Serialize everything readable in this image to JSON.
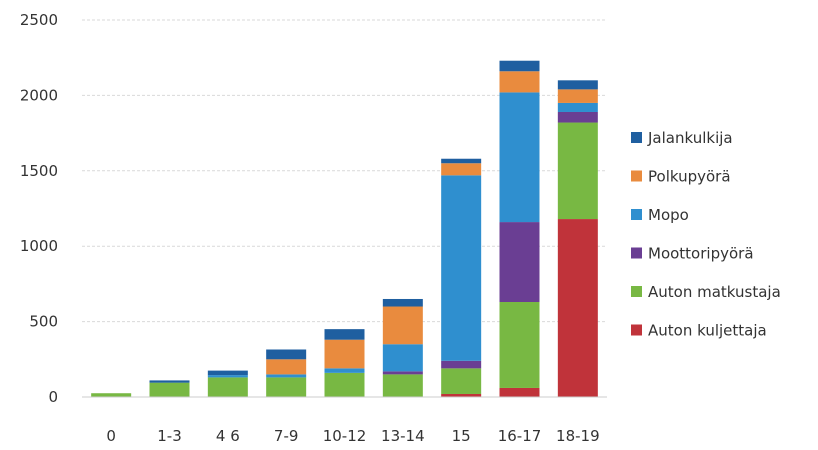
{
  "chart_data": {
    "type": "bar",
    "stacked": true,
    "categories": [
      "0",
      "1-3",
      "4 6",
      "7-9",
      "10-12",
      "13-14",
      "15",
      "16-17",
      "18-19"
    ],
    "yticks": [
      "0",
      "500",
      "1000",
      "1500",
      "2000",
      "2500"
    ],
    "ylim": [
      0,
      2500
    ],
    "grid": true,
    "legend_position": "right",
    "series": [
      {
        "name": "Auton kuljettaja",
        "color": "#c0333a",
        "values": [
          0,
          0,
          0,
          0,
          0,
          0,
          20,
          60,
          1180
        ]
      },
      {
        "name": "Auton matkustaja",
        "color": "#78b843",
        "values": [
          25,
          95,
          130,
          130,
          160,
          150,
          170,
          570,
          640
        ]
      },
      {
        "name": "Moottoripyörä",
        "color": "#6a3e93",
        "values": [
          0,
          0,
          0,
          0,
          0,
          20,
          50,
          530,
          70
        ]
      },
      {
        "name": "Mopo",
        "color": "#2f8fcf",
        "values": [
          0,
          0,
          15,
          20,
          30,
          180,
          1230,
          860,
          60
        ]
      },
      {
        "name": "Polkupyörä",
        "color": "#e98b3e",
        "values": [
          0,
          0,
          0,
          100,
          190,
          250,
          80,
          140,
          90
        ]
      },
      {
        "name": "Jalankulkija",
        "color": "#1f5fa0",
        "values": [
          0,
          15,
          30,
          65,
          70,
          50,
          30,
          70,
          60
        ]
      }
    ],
    "legend_order": [
      "Jalankulkija",
      "Polkupyörä",
      "Mopo",
      "Moottoripyörä",
      "Auton matkustaja",
      "Auton kuljettaja"
    ]
  }
}
